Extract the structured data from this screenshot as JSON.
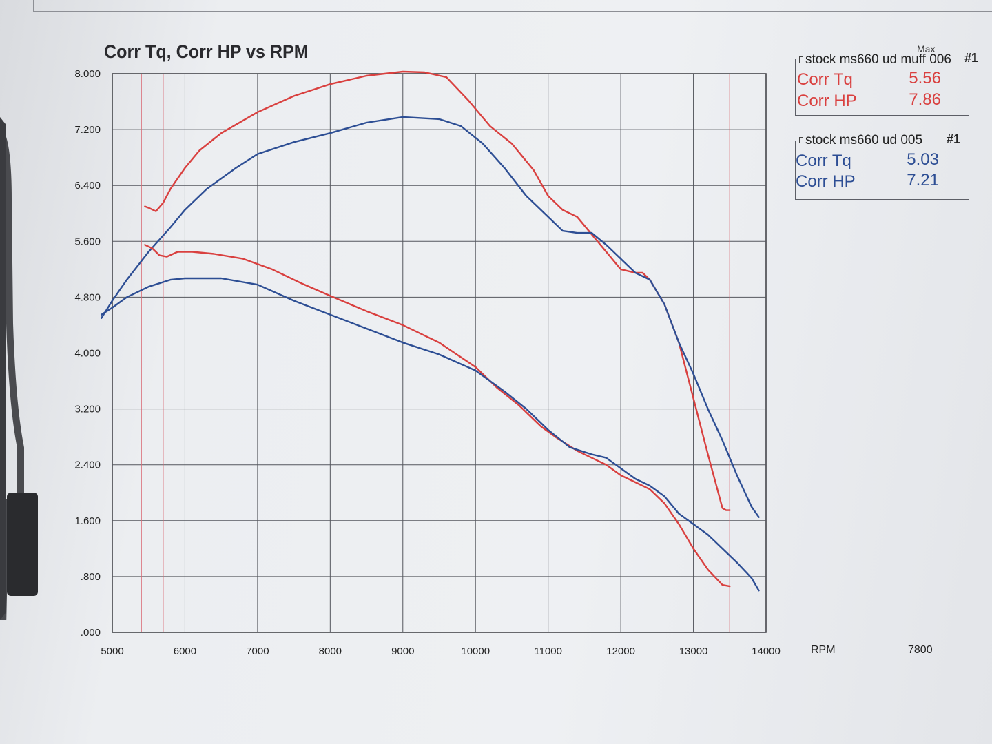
{
  "chart_data": {
    "type": "line",
    "title": "Corr Tq, Corr HP vs RPM",
    "xlabel": "RPM",
    "ylabel": "",
    "xlim": [
      5000,
      14000
    ],
    "ylim": [
      0,
      8
    ],
    "x_ticks": [
      "5000",
      "6000",
      "7000",
      "8000",
      "9000",
      "10000",
      "11000",
      "12000",
      "13000",
      "14000"
    ],
    "y_ticks": [
      ".000",
      ".800",
      "1.600",
      "2.400",
      "3.200",
      "4.000",
      "4.800",
      "5.600",
      "6.400",
      "7.200",
      "8.000"
    ],
    "grid": true,
    "markers_rpm": [
      5400,
      5700,
      13500
    ],
    "series": [
      {
        "name": "stock ms660 ud muff 006 Corr HP",
        "run": "stock ms660 ud muff 006",
        "metric": "Corr HP",
        "color": "#d9403f",
        "x": [
          5450,
          5500,
          5600,
          5700,
          5800,
          6000,
          6200,
          6500,
          7000,
          7500,
          8000,
          8500,
          9000,
          9300,
          9600,
          9900,
          10200,
          10500,
          10800,
          11000,
          11200,
          11400,
          11600,
          11800,
          12000,
          12200,
          12300,
          12400,
          12600,
          12800,
          13000,
          13200,
          13400,
          13450,
          13500
        ],
        "y": [
          6.1,
          6.08,
          6.03,
          6.15,
          6.35,
          6.65,
          6.9,
          7.15,
          7.45,
          7.68,
          7.85,
          7.97,
          8.03,
          8.02,
          7.95,
          7.62,
          7.25,
          7.0,
          6.62,
          6.25,
          6.05,
          5.95,
          5.7,
          5.45,
          5.2,
          5.15,
          5.15,
          5.05,
          4.7,
          4.15,
          3.35,
          2.55,
          1.78,
          1.75,
          1.75
        ]
      },
      {
        "name": "stock ms660 ud 005 Corr HP",
        "run": "stock ms660 ud 005",
        "metric": "Corr HP",
        "color": "#2d4e94",
        "x": [
          4850,
          5000,
          5200,
          5500,
          5800,
          6000,
          6300,
          6700,
          7000,
          7500,
          8000,
          8500,
          9000,
          9500,
          9800,
          10100,
          10400,
          10700,
          11000,
          11200,
          11400,
          11600,
          11800,
          12000,
          12200,
          12400,
          12600,
          12800,
          13000,
          13200,
          13400,
          13600,
          13800,
          13900
        ],
        "y": [
          4.5,
          4.75,
          5.05,
          5.45,
          5.8,
          6.05,
          6.35,
          6.65,
          6.85,
          7.02,
          7.15,
          7.3,
          7.38,
          7.35,
          7.25,
          7.0,
          6.65,
          6.25,
          5.95,
          5.75,
          5.72,
          5.72,
          5.55,
          5.35,
          5.15,
          5.05,
          4.7,
          4.15,
          3.7,
          3.2,
          2.75,
          2.25,
          1.8,
          1.65
        ]
      },
      {
        "name": "stock ms660 ud muff 006 Corr Tq",
        "run": "stock ms660 ud muff 006",
        "metric": "Corr Tq",
        "color": "#d9403f",
        "x": [
          5450,
          5550,
          5650,
          5750,
          5900,
          6100,
          6400,
          6800,
          7200,
          7600,
          8000,
          8500,
          9000,
          9500,
          10000,
          10300,
          10600,
          10900,
          11100,
          11400,
          11600,
          11800,
          12000,
          12200,
          12400,
          12600,
          12800,
          13000,
          13200,
          13400,
          13500
        ],
        "y": [
          5.55,
          5.5,
          5.4,
          5.38,
          5.45,
          5.45,
          5.42,
          5.35,
          5.2,
          5.0,
          4.82,
          4.6,
          4.4,
          4.15,
          3.8,
          3.5,
          3.25,
          2.95,
          2.8,
          2.6,
          2.5,
          2.4,
          2.25,
          2.15,
          2.05,
          1.85,
          1.55,
          1.2,
          0.9,
          0.68,
          0.66
        ]
      },
      {
        "name": "stock ms660 ud 005 Corr Tq",
        "run": "stock ms660 ud 005",
        "metric": "Corr Tq",
        "color": "#2d4e94",
        "x": [
          4850,
          5000,
          5200,
          5500,
          5800,
          6000,
          6300,
          6500,
          7000,
          7500,
          8000,
          8500,
          9000,
          9500,
          10000,
          10400,
          10700,
          11000,
          11300,
          11600,
          11800,
          12000,
          12200,
          12400,
          12600,
          12800,
          13000,
          13200,
          13400,
          13600,
          13800,
          13900
        ],
        "y": [
          4.55,
          4.65,
          4.8,
          4.95,
          5.05,
          5.07,
          5.07,
          5.07,
          4.98,
          4.75,
          4.55,
          4.35,
          4.15,
          3.98,
          3.75,
          3.45,
          3.2,
          2.9,
          2.65,
          2.55,
          2.5,
          2.35,
          2.2,
          2.1,
          1.95,
          1.7,
          1.55,
          1.4,
          1.2,
          1.0,
          0.78,
          0.6
        ]
      }
    ]
  },
  "legend": [
    {
      "header": "stock ms660 ud muff 006",
      "run_number": "#1",
      "color": "#d9403f",
      "rows": [
        {
          "name": "Corr Tq",
          "value": "5.56"
        },
        {
          "name": "Corr HP",
          "value": "7.86"
        }
      ]
    },
    {
      "header": "stock ms660 ud 005",
      "run_number": "#1",
      "color": "#2d4e94",
      "rows": [
        {
          "name": "Corr Tq",
          "value": "5.03"
        },
        {
          "name": "Corr HP",
          "value": "7.21"
        }
      ]
    }
  ],
  "legend_max_label": "Max",
  "x_unit_label": "RPM",
  "extra_value": "7800"
}
